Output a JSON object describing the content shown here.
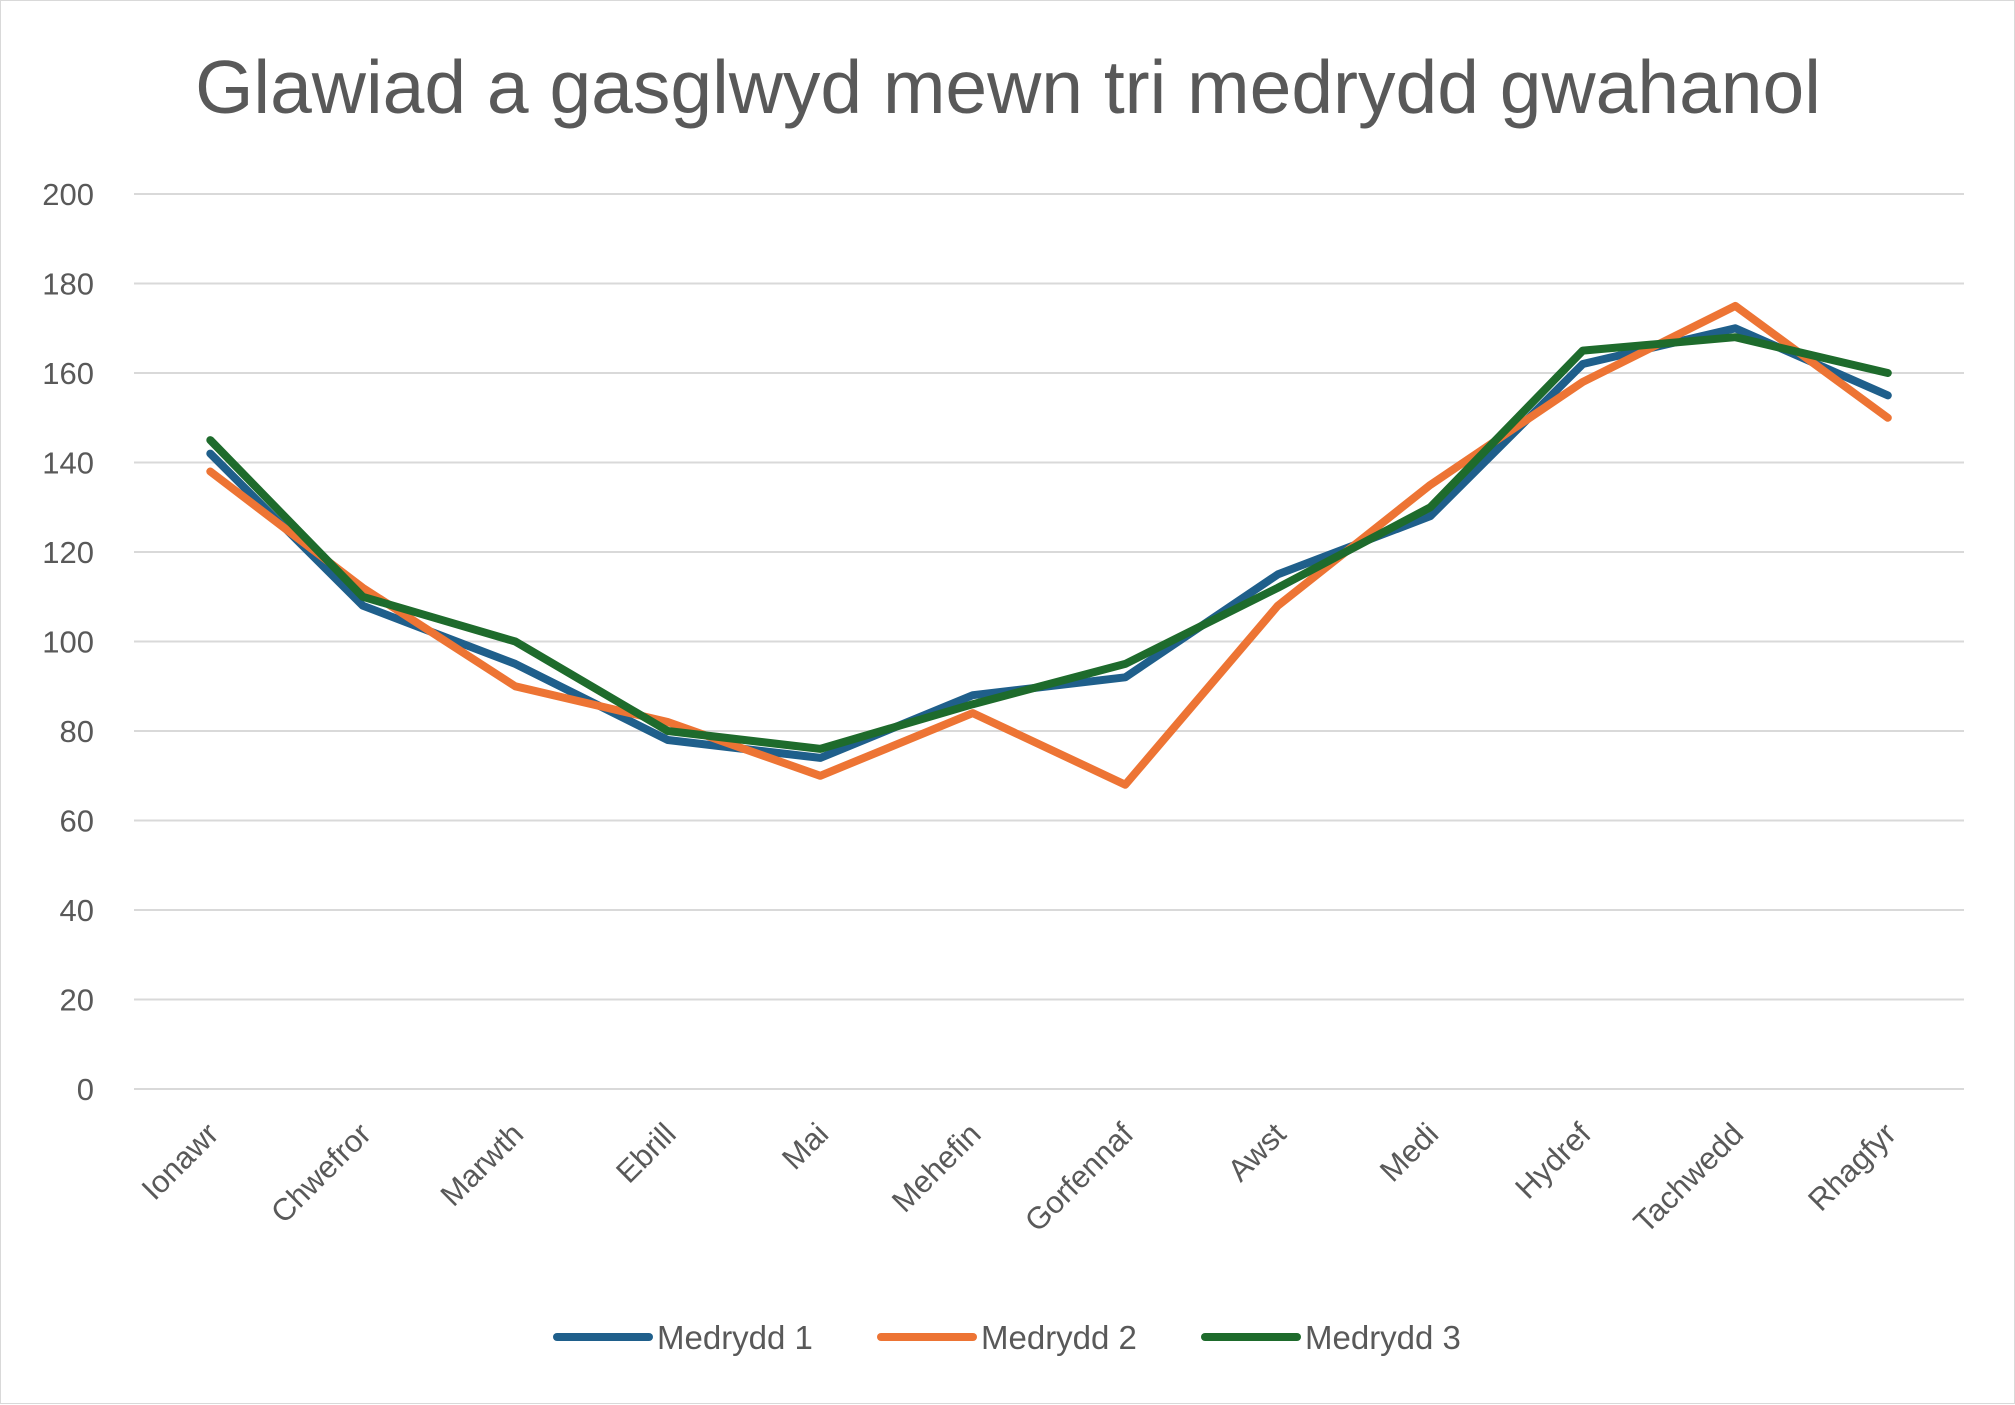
{
  "chart_data": {
    "type": "line",
    "title": "Glawiad a gasglwyd mewn tri medrydd gwahanol",
    "xlabel": "",
    "ylabel": "",
    "ylim": [
      0,
      200
    ],
    "yticks": [
      "0",
      "20",
      "40",
      "60",
      "80",
      "100",
      "120",
      "140",
      "160",
      "180",
      "200"
    ],
    "grid": true,
    "legend_position": "bottom",
    "categories": [
      "Ionawr",
      "Chwefror",
      "Marwth",
      "Ebrill",
      "Mai",
      "Mehefin",
      "Gorfennaf",
      "Awst",
      "Medi",
      "Hydref",
      "Tachwedd",
      "Rhagfyr"
    ],
    "series": [
      {
        "name": "Medrydd 1",
        "color": "#1f5f8b",
        "values": [
          142,
          108,
          95,
          78,
          74,
          88,
          92,
          115,
          128,
          162,
          170,
          155
        ]
      },
      {
        "name": "Medrydd 2",
        "color": "#ed7434",
        "values": [
          138,
          112,
          90,
          82,
          70,
          84,
          68,
          108,
          135,
          158,
          175,
          150
        ]
      },
      {
        "name": "Medrydd 3",
        "color": "#1e6b2c",
        "values": [
          145,
          110,
          100,
          80,
          76,
          86,
          95,
          112,
          130,
          165,
          168,
          160
        ]
      }
    ]
  }
}
